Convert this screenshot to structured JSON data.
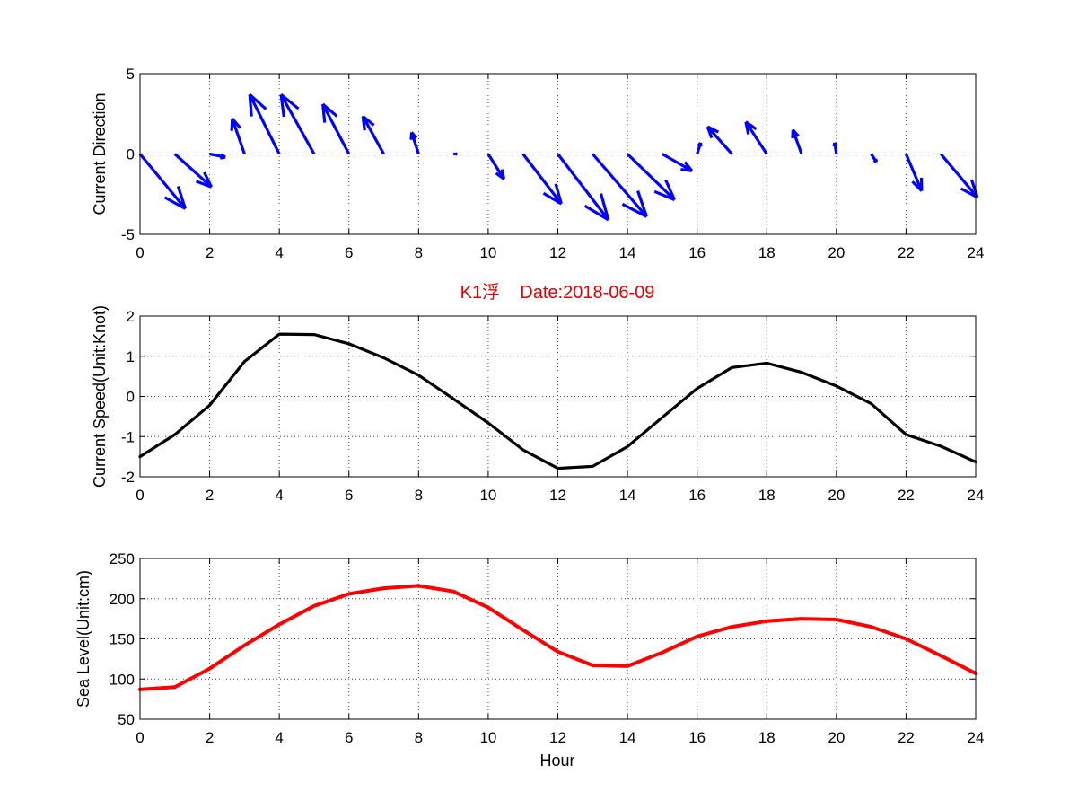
{
  "chart_data": [
    {
      "type": "quiver",
      "ylabel": "Current Direction",
      "xlim": [
        0,
        24
      ],
      "ylim": [
        -5,
        5
      ],
      "xticks": [
        0,
        2,
        4,
        6,
        8,
        10,
        12,
        14,
        16,
        18,
        20,
        22,
        24
      ],
      "yticks": [
        -5,
        0,
        5
      ],
      "grid": true,
      "color": "#0000ff",
      "vectors": [
        {
          "x": 0,
          "u": 1.3,
          "v": -3.4
        },
        {
          "x": 1,
          "u": 1.05,
          "v": -2.05
        },
        {
          "x": 2,
          "u": 0.45,
          "v": -0.2
        },
        {
          "x": 3,
          "u": -0.35,
          "v": 2.2
        },
        {
          "x": 4,
          "u": -0.85,
          "v": 3.7
        },
        {
          "x": 5,
          "u": -0.95,
          "v": 3.7
        },
        {
          "x": 6,
          "u": -0.75,
          "v": 3.1
        },
        {
          "x": 7,
          "u": -0.6,
          "v": 2.35
        },
        {
          "x": 8,
          "u": -0.2,
          "v": 1.35
        },
        {
          "x": 9,
          "u": 0.1,
          "v": 0.0
        },
        {
          "x": 10,
          "u": 0.45,
          "v": -1.55
        },
        {
          "x": 11,
          "u": 1.1,
          "v": -3.1
        },
        {
          "x": 12,
          "u": 1.45,
          "v": -4.1
        },
        {
          "x": 13,
          "u": 1.55,
          "v": -3.9
        },
        {
          "x": 14,
          "u": 1.35,
          "v": -2.85
        },
        {
          "x": 15,
          "u": 0.85,
          "v": -1.05
        },
        {
          "x": 16,
          "u": 0.1,
          "v": 0.7
        },
        {
          "x": 17,
          "u": -0.7,
          "v": 1.7
        },
        {
          "x": 18,
          "u": -0.6,
          "v": 2.0
        },
        {
          "x": 19,
          "u": -0.25,
          "v": 1.5
        },
        {
          "x": 20,
          "u": -0.05,
          "v": 0.7
        },
        {
          "x": 21,
          "u": 0.15,
          "v": -0.5
        },
        {
          "x": 22,
          "u": 0.45,
          "v": -2.3
        },
        {
          "x": 23,
          "u": 1.05,
          "v": -2.7
        }
      ]
    },
    {
      "type": "line",
      "title": "K1浮    Date:2018-06-09",
      "ylabel": "Current Speed(Unit:Knot)",
      "xlim": [
        0,
        24
      ],
      "ylim": [
        -2,
        2
      ],
      "xticks": [
        0,
        2,
        4,
        6,
        8,
        10,
        12,
        14,
        16,
        18,
        20,
        22,
        24
      ],
      "yticks": [
        -2,
        -1,
        0,
        1,
        2
      ],
      "grid": true,
      "color": "#000000",
      "x": [
        0,
        1,
        2,
        3,
        4,
        5,
        6,
        7,
        8,
        9,
        10,
        11,
        12,
        13,
        14,
        15,
        16,
        17,
        18,
        19,
        20,
        21,
        22,
        23,
        24
      ],
      "y": [
        -1.5,
        -0.95,
        -0.22,
        0.87,
        1.55,
        1.54,
        1.31,
        0.96,
        0.53,
        -0.06,
        -0.66,
        -1.33,
        -1.79,
        -1.74,
        -1.25,
        -0.52,
        0.2,
        0.72,
        0.83,
        0.6,
        0.26,
        -0.18,
        -0.95,
        -1.24,
        -1.63
      ]
    },
    {
      "type": "line",
      "ylabel": "Sea Level(Unit:cm)",
      "xlabel": "Hour",
      "xlim": [
        0,
        24
      ],
      "ylim": [
        50,
        250
      ],
      "xticks": [
        0,
        2,
        4,
        6,
        8,
        10,
        12,
        14,
        16,
        18,
        20,
        22,
        24
      ],
      "yticks": [
        50,
        100,
        150,
        200,
        250
      ],
      "grid": true,
      "color": "#ff0000",
      "x": [
        0,
        1,
        2,
        3,
        4,
        5,
        6,
        7,
        8,
        9,
        10,
        11,
        12,
        13,
        14,
        15,
        16,
        17,
        18,
        19,
        20,
        21,
        22,
        23,
        24
      ],
      "y": [
        87,
        90,
        113,
        142,
        168,
        191,
        206,
        213,
        216,
        209,
        189,
        161,
        134,
        117,
        116,
        133,
        153,
        165,
        172,
        175,
        174,
        165,
        150,
        129,
        107
      ]
    }
  ]
}
